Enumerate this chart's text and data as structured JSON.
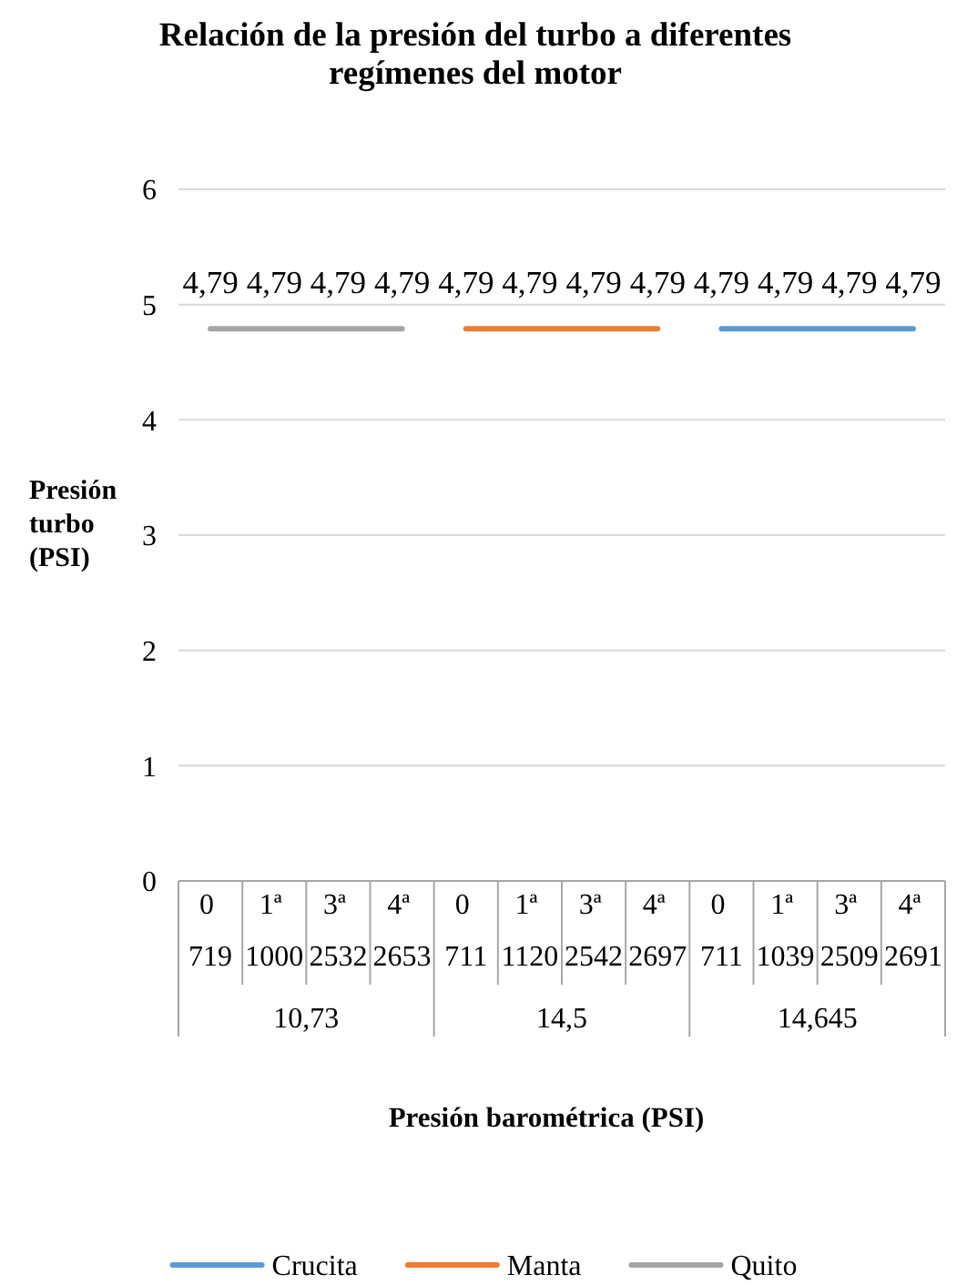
{
  "chart_data": {
    "type": "line",
    "title": "Relación de la presión del turbo a diferentes regímenes del motor",
    "xlabel": "Presión barométrica (PSI)",
    "ylabel": "Presión turbo (PSI)",
    "categories": [
      "0\n719",
      "1ª\n1000",
      "3ª\n2532",
      "4ª\n2653",
      "0\n711",
      "1ª\n1120",
      "3ª\n2542",
      "4ª\n2697",
      "0\n711",
      "1ª\n1039",
      "3ª\n2509",
      "4ª\n2691"
    ],
    "annotations": [
      "10,73",
      "14,5",
      "14,645"
    ],
    "series": [
      {
        "name": "Crucita",
        "color": "#5b9bd5",
        "values": [
          null,
          null,
          null,
          null,
          null,
          null,
          null,
          null,
          4.79,
          4.79,
          4.79,
          4.79
        ],
        "value_labels": [
          null,
          null,
          null,
          null,
          null,
          null,
          null,
          null,
          "4,79",
          "4,79",
          "4,79",
          "4,79"
        ]
      },
      {
        "name": "Manta",
        "color": "#ed7d31",
        "values": [
          null,
          null,
          null,
          null,
          4.79,
          4.79,
          4.79,
          4.79,
          null,
          null,
          null,
          null
        ],
        "value_labels": [
          null,
          null,
          null,
          null,
          "4,79",
          "4,79",
          "4,79",
          "4,79",
          null,
          null,
          null,
          null
        ]
      },
      {
        "name": "Quito",
        "color": "#a5a5a5",
        "values": [
          4.79,
          4.79,
          4.79,
          4.79,
          null,
          null,
          null,
          null,
          null,
          null,
          null,
          null
        ],
        "value_labels": [
          "4,79",
          "4,79",
          "4,79",
          "4,79",
          null,
          null,
          null,
          null,
          null,
          null,
          null,
          null
        ]
      }
    ],
    "ylim": [
      0,
      6
    ],
    "yticks": [
      0,
      1,
      2,
      3,
      4,
      5,
      6
    ],
    "grid": "y",
    "legend": "bottom",
    "marker": "none",
    "line_style": "solid"
  }
}
